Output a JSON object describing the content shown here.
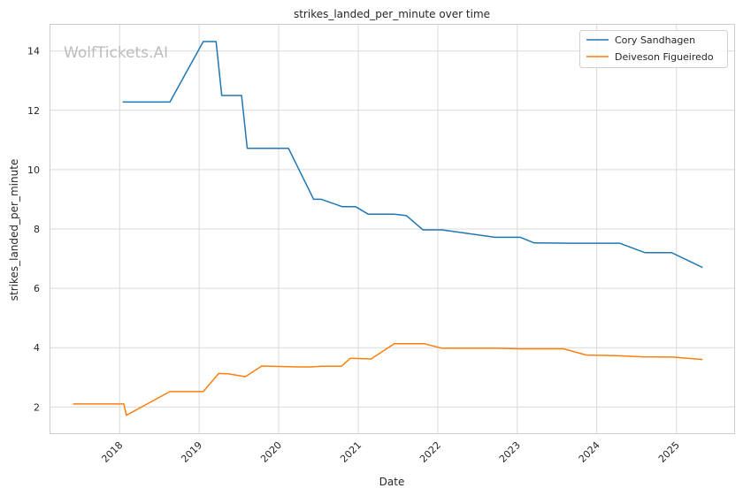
{
  "watermark": "WolfTickets.AI",
  "chart_data": {
    "type": "line",
    "title": "strikes_landed_per_minute over time",
    "xlabel": "Date",
    "ylabel": "strikes_landed_per_minute",
    "x_ticks": [
      "2018",
      "2019",
      "2020",
      "2021",
      "2022",
      "2023",
      "2024",
      "2025"
    ],
    "y_ticks": [
      2,
      4,
      6,
      8,
      10,
      12,
      14
    ],
    "xlim": [
      "2017-02-15",
      "2025-09-25"
    ],
    "ylim": [
      1.1,
      14.9
    ],
    "grid": true,
    "legend_position": "top-right",
    "series": [
      {
        "name": "Cory Sandhagen",
        "color": "#1f77b4",
        "points": [
          [
            "2018-01-15",
            12.28
          ],
          [
            "2018-08-20",
            12.28
          ],
          [
            "2019-01-20",
            14.32
          ],
          [
            "2019-03-20",
            14.32
          ],
          [
            "2019-04-15",
            12.5
          ],
          [
            "2019-07-15",
            12.5
          ],
          [
            "2019-08-10",
            10.72
          ],
          [
            "2020-02-15",
            10.72
          ],
          [
            "2020-06-10",
            9.0
          ],
          [
            "2020-07-15",
            9.0
          ],
          [
            "2020-10-20",
            8.75
          ],
          [
            "2020-12-20",
            8.75
          ],
          [
            "2021-02-15",
            8.5
          ],
          [
            "2021-06-15",
            8.5
          ],
          [
            "2021-08-10",
            8.45
          ],
          [
            "2021-10-25",
            7.97
          ],
          [
            "2022-01-20",
            7.97
          ],
          [
            "2022-09-20",
            7.72
          ],
          [
            "2023-01-15",
            7.72
          ],
          [
            "2023-03-20",
            7.53
          ],
          [
            "2023-09-01",
            7.52
          ],
          [
            "2024-04-15",
            7.52
          ],
          [
            "2024-08-10",
            7.2
          ],
          [
            "2024-12-10",
            7.2
          ],
          [
            "2025-05-01",
            6.7
          ]
        ]
      },
      {
        "name": "Deiveson Figueiredo",
        "color": "#ff7f0e",
        "points": [
          [
            "2017-06-01",
            2.1
          ],
          [
            "2018-01-20",
            2.1
          ],
          [
            "2018-02-01",
            1.72
          ],
          [
            "2018-08-20",
            2.52
          ],
          [
            "2019-01-20",
            2.52
          ],
          [
            "2019-04-01",
            3.13
          ],
          [
            "2019-05-15",
            3.12
          ],
          [
            "2019-08-01",
            3.02
          ],
          [
            "2019-10-15",
            3.38
          ],
          [
            "2020-04-01",
            3.35
          ],
          [
            "2020-06-01",
            3.35
          ],
          [
            "2020-07-15",
            3.37
          ],
          [
            "2020-10-15",
            3.37
          ],
          [
            "2020-11-25",
            3.64
          ],
          [
            "2021-03-01",
            3.62
          ],
          [
            "2021-06-15",
            4.13
          ],
          [
            "2021-11-01",
            4.13
          ],
          [
            "2022-01-20",
            3.98
          ],
          [
            "2022-10-01",
            3.98
          ],
          [
            "2023-01-15",
            3.96
          ],
          [
            "2023-08-01",
            3.96
          ],
          [
            "2023-11-15",
            3.75
          ],
          [
            "2024-04-01",
            3.73
          ],
          [
            "2024-08-01",
            3.69
          ],
          [
            "2024-12-15",
            3.68
          ],
          [
            "2025-05-01",
            3.6
          ]
        ]
      }
    ]
  }
}
